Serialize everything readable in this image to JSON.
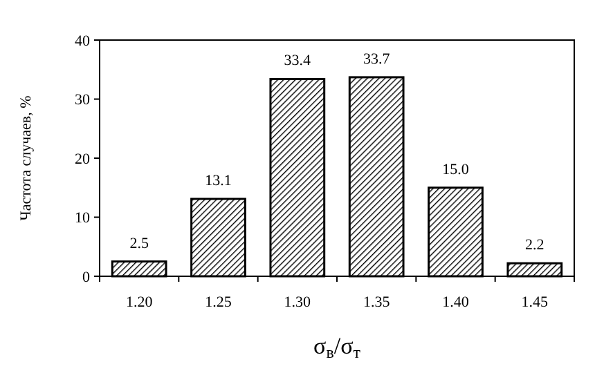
{
  "chart_data": {
    "type": "bar",
    "xlabel": "σ$_{в}$/σ$_{т}$",
    "ylabel": "Частота случаев, %",
    "categories": [
      "1.20",
      "1.25",
      "1.30",
      "1.35",
      "1.40",
      "1.45"
    ],
    "values": [
      2.5,
      13.1,
      33.4,
      33.7,
      15.0,
      2.2
    ],
    "color": "#000000",
    "ylim": [
      0,
      40
    ],
    "yticks": [
      0,
      10,
      20,
      30,
      40
    ],
    "value_labels": [
      "2.5",
      "13.1",
      "33.4",
      "33.7",
      "15.0",
      "2.2"
    ]
  }
}
